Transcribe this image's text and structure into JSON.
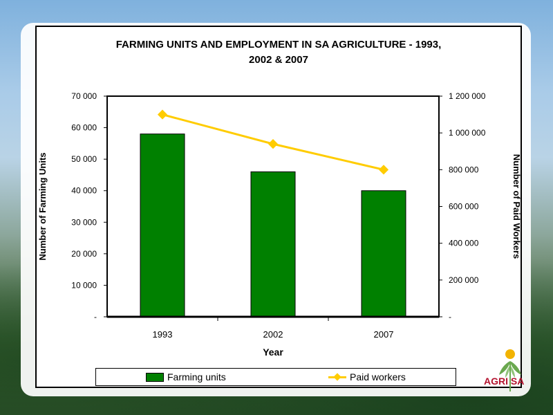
{
  "chart_data": {
    "type": "bar+line",
    "title": "FARMING UNITS AND EMPLOYMENT IN SA AGRICULTURE - 1993, 2002 & 2007",
    "title_lines": [
      "FARMING UNITS AND EMPLOYMENT IN SA AGRICULTURE - 1993,",
      "2002 & 2007"
    ],
    "xlabel": "Year",
    "ylabel_left": "Number of Farming Units",
    "ylabel_right": "Number of Paid Workers",
    "categories": [
      "1993",
      "2002",
      "2007"
    ],
    "series": [
      {
        "name": "Farming units",
        "type": "bar",
        "axis": "left",
        "color": "#008000",
        "values": [
          58000,
          46000,
          40000
        ]
      },
      {
        "name": "Paid workers",
        "type": "line",
        "axis": "right",
        "color": "#ffcc00",
        "values": [
          1100000,
          940000,
          800000
        ]
      }
    ],
    "ylim_left": [
      0,
      70000
    ],
    "ylim_right": [
      0,
      1200000
    ],
    "left_ticks": [
      0,
      10000,
      20000,
      30000,
      40000,
      50000,
      60000,
      70000
    ],
    "left_tick_labels": [
      "-",
      "10 000",
      "20 000",
      "30 000",
      "40 000",
      "50 000",
      "60 000",
      "70 000"
    ],
    "right_ticks": [
      0,
      200000,
      400000,
      600000,
      800000,
      1000000,
      1200000
    ],
    "right_tick_labels": [
      "-",
      "200 000",
      "400 000",
      "600 000",
      "800 000",
      "1 000 000",
      "1 200 000"
    ],
    "grid": false,
    "legend_position": "bottom"
  },
  "legend": {
    "bar_label": "Farming units",
    "line_label": "Paid workers"
  },
  "logo": {
    "text": "AGRI SA"
  }
}
